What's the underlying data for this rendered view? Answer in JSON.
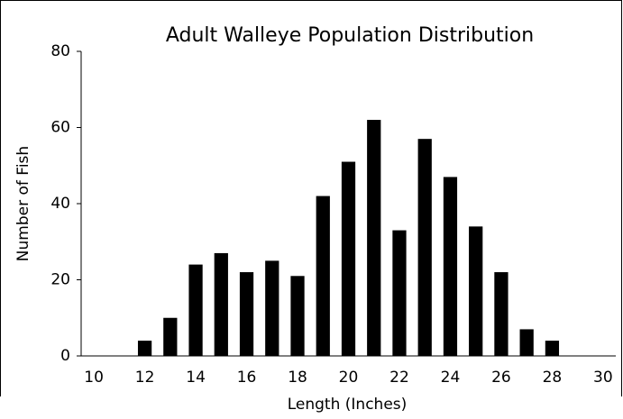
{
  "chart_data": {
    "type": "bar",
    "title": "Adult Walleye Population Distribution",
    "x_label": "Length (Inches)",
    "y_label": "Number of Fish",
    "categories": [
      "10",
      null,
      "12",
      null,
      "14",
      null,
      "16",
      null,
      "18",
      null,
      "20",
      null,
      "22",
      null,
      "24",
      null,
      "26",
      null,
      "28",
      null,
      "30"
    ],
    "values": [
      0,
      0,
      4,
      10,
      24,
      27,
      22,
      25,
      21,
      42,
      51,
      62,
      33,
      57,
      47,
      34,
      22,
      7,
      4,
      0,
      0
    ],
    "color": "#000000",
    "ylim": [
      0,
      80
    ],
    "yticks": [
      0,
      20,
      40,
      60,
      80
    ],
    "grid": false
  }
}
